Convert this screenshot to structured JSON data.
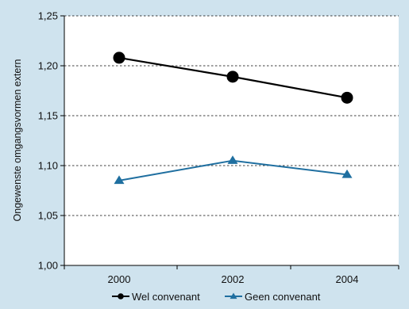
{
  "chart_data": {
    "type": "line",
    "title": "",
    "xlabel": "",
    "ylabel": "Ongewenste omgangsvormen extern",
    "x": [
      "2000",
      "2002",
      "2004"
    ],
    "ylim": [
      1.0,
      1.25
    ],
    "yticks": [
      "1,00",
      "1,05",
      "1,10",
      "1,15",
      "1,20",
      "1,25"
    ],
    "ytick_values": [
      1.0,
      1.05,
      1.1,
      1.15,
      1.2,
      1.25
    ],
    "grid": true,
    "legend_position": "bottom",
    "series": [
      {
        "name": "Wel convenant",
        "values": [
          1.208,
          1.189,
          1.168
        ],
        "color": "#000000",
        "marker": "circle"
      },
      {
        "name": "Geen convenant",
        "values": [
          1.085,
          1.105,
          1.091
        ],
        "color": "#1f6fa0",
        "marker": "triangle"
      }
    ]
  }
}
